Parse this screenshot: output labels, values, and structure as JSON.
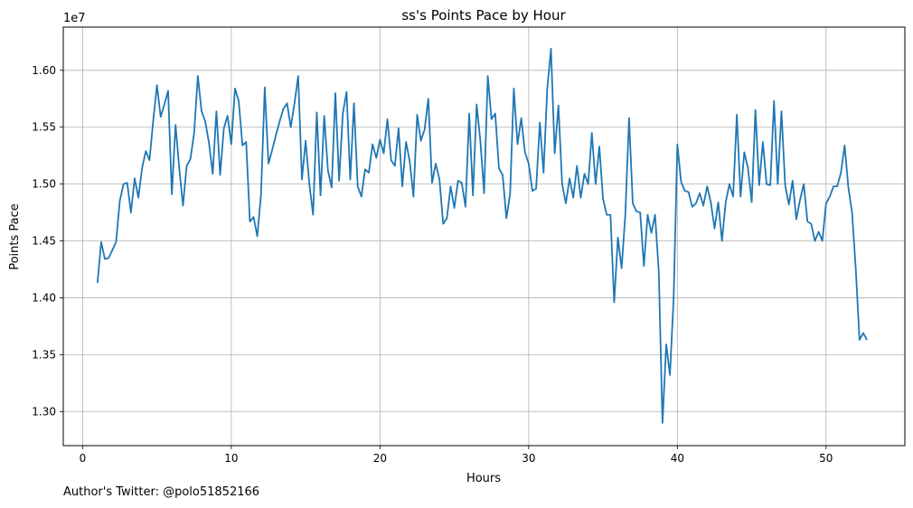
{
  "chart_data": {
    "type": "line",
    "title": "ss's Points Pace by Hour",
    "xlabel": "Hours",
    "ylabel": "Points Pace",
    "y_offset_label": "1e7",
    "xlim": [
      -1.3,
      55.3
    ],
    "ylim": [
      12.7,
      16.38
    ],
    "grid": true,
    "x_ticks": [
      0,
      10,
      20,
      30,
      40,
      50
    ],
    "x_tick_labels": [
      "0",
      "10",
      "20",
      "30",
      "40",
      "50"
    ],
    "y_ticks": [
      13.0,
      13.5,
      14.0,
      14.5,
      15.0,
      15.5,
      16.0
    ],
    "y_tick_labels": [
      "1.30",
      "1.35",
      "1.40",
      "1.45",
      "1.50",
      "1.55",
      "1.60"
    ],
    "series": [
      {
        "color": "#1f77b4",
        "x": [
          1.0,
          1.25,
          1.5,
          1.75,
          2.0,
          2.25,
          2.5,
          2.75,
          3.0,
          3.25,
          3.5,
          3.75,
          4.0,
          4.25,
          4.5,
          4.75,
          5.0,
          5.25,
          5.5,
          5.75,
          6.0,
          6.25,
          6.5,
          6.75,
          7.0,
          7.25,
          7.5,
          7.75,
          8.0,
          8.25,
          8.5,
          8.75,
          9.0,
          9.25,
          9.5,
          9.75,
          10.0,
          10.25,
          10.5,
          10.75,
          11.0,
          11.25,
          11.5,
          11.75,
          12.0,
          12.25,
          12.5,
          12.75,
          13.0,
          13.25,
          13.5,
          13.75,
          14.0,
          14.25,
          14.5,
          14.75,
          15.0,
          15.25,
          15.5,
          15.75,
          16.0,
          16.25,
          16.5,
          16.75,
          17.0,
          17.25,
          17.5,
          17.75,
          18.0,
          18.25,
          18.5,
          18.75,
          19.0,
          19.25,
          19.5,
          19.75,
          20.0,
          20.25,
          20.5,
          20.75,
          21.0,
          21.25,
          21.5,
          21.75,
          22.0,
          22.25,
          22.5,
          22.75,
          23.0,
          23.25,
          23.5,
          23.75,
          24.0,
          24.25,
          24.5,
          24.75,
          25.0,
          25.25,
          25.5,
          25.75,
          26.0,
          26.25,
          26.5,
          26.75,
          27.0,
          27.25,
          27.5,
          27.75,
          28.0,
          28.25,
          28.5,
          28.75,
          29.0,
          29.25,
          29.5,
          29.75,
          30.0,
          30.25,
          30.5,
          30.75,
          31.0,
          31.25,
          31.5,
          31.75,
          32.0,
          32.25,
          32.5,
          32.75,
          33.0,
          33.25,
          33.5,
          33.75,
          34.0,
          34.25,
          34.5,
          34.75,
          35.0,
          35.25,
          35.5,
          35.75,
          36.0,
          36.25,
          36.5,
          36.75,
          37.0,
          37.25,
          37.5,
          37.75,
          38.0,
          38.25,
          38.5,
          38.75,
          39.0,
          39.25,
          39.5,
          39.75,
          40.0,
          40.25,
          40.5,
          40.75,
          41.0,
          41.25,
          41.5,
          41.75,
          42.0,
          42.25,
          42.5,
          42.75,
          43.0,
          43.25,
          43.5,
          43.75,
          44.0,
          44.25,
          44.5,
          44.75,
          45.0,
          45.25,
          45.5,
          45.75,
          46.0,
          46.25,
          46.5,
          46.75,
          47.0,
          47.25,
          47.5,
          47.75,
          48.0,
          48.25,
          48.5,
          48.75,
          49.0,
          49.25,
          49.5,
          49.75,
          50.0,
          50.25,
          50.5,
          50.75,
          51.0,
          51.25,
          51.5,
          51.75,
          52.0,
          52.25,
          52.5,
          52.75
        ],
        "y": [
          14.13,
          14.49,
          14.34,
          14.35,
          14.42,
          14.49,
          14.85,
          15.0,
          15.01,
          14.75,
          15.05,
          14.88,
          15.14,
          15.29,
          15.21,
          15.56,
          15.87,
          15.59,
          15.7,
          15.82,
          14.91,
          15.52,
          15.14,
          14.81,
          15.16,
          15.22,
          15.45,
          15.95,
          15.64,
          15.55,
          15.36,
          15.09,
          15.64,
          15.08,
          15.49,
          15.6,
          15.35,
          15.84,
          15.73,
          15.34,
          15.37,
          14.67,
          14.71,
          14.54,
          14.91,
          15.85,
          15.18,
          15.3,
          15.43,
          15.55,
          15.66,
          15.71,
          15.5,
          15.71,
          15.95,
          15.04,
          15.38,
          15.0,
          14.73,
          15.63,
          14.9,
          15.6,
          15.12,
          14.97,
          15.8,
          15.03,
          15.62,
          15.81,
          15.04,
          15.71,
          14.98,
          14.89,
          15.13,
          15.1,
          15.35,
          15.23,
          15.39,
          15.27,
          15.57,
          15.21,
          15.16,
          15.49,
          14.98,
          15.37,
          15.2,
          14.89,
          15.61,
          15.38,
          15.48,
          15.75,
          15.01,
          15.18,
          15.04,
          14.65,
          14.7,
          14.98,
          14.79,
          15.03,
          15.01,
          14.8,
          15.62,
          14.9,
          15.7,
          15.38,
          14.92,
          15.95,
          15.57,
          15.62,
          15.14,
          15.08,
          14.7,
          14.91,
          15.84,
          15.35,
          15.58,
          15.28,
          15.18,
          14.94,
          14.96,
          15.54,
          15.1,
          15.84,
          16.19,
          15.27,
          15.69,
          15.0,
          14.83,
          15.05,
          14.88,
          15.16,
          14.88,
          15.09,
          15.0,
          15.45,
          15.0,
          15.33,
          14.87,
          14.73,
          14.73,
          13.96,
          14.53,
          14.26,
          14.73,
          15.58,
          14.83,
          14.76,
          14.75,
          14.28,
          14.73,
          14.57,
          14.73,
          14.23,
          12.9,
          13.59,
          13.32,
          14.0,
          15.35,
          15.02,
          14.94,
          14.93,
          14.8,
          14.83,
          14.92,
          14.81,
          14.98,
          14.84,
          14.61,
          14.84,
          14.5,
          14.84,
          15.0,
          14.89,
          15.61,
          14.89,
          15.28,
          15.14,
          14.84,
          15.65,
          14.99,
          15.37,
          15.0,
          14.99,
          15.73,
          15.0,
          15.64,
          14.99,
          14.82,
          15.03,
          14.69,
          14.86,
          15.0,
          14.67,
          14.65,
          14.5,
          14.58,
          14.5,
          14.83,
          14.89,
          14.98,
          14.98,
          15.1,
          15.34,
          14.97,
          14.75,
          14.25,
          13.63,
          13.69,
          13.63
        ]
      }
    ]
  },
  "footer_text": "Author's Twitter: @polo51852166"
}
